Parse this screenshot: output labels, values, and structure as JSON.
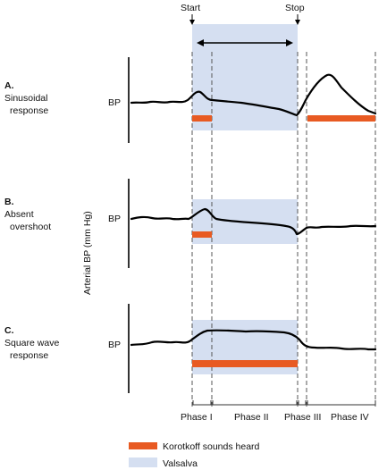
{
  "markers": {
    "start": "Start",
    "stop": "Stop"
  },
  "axis_label": "Arterial BP (mm Hg)",
  "panels": [
    {
      "letter": "A.",
      "title_lines": [
        "Sinusoidal",
        "response"
      ],
      "bp_label": "BP"
    },
    {
      "letter": "B.",
      "title_lines": [
        "Absent",
        "overshoot"
      ],
      "bp_label": "BP"
    },
    {
      "letter": "C.",
      "title_lines": [
        "Square wave",
        "response"
      ],
      "bp_label": "BP"
    }
  ],
  "phases": [
    "Phase I",
    "Phase II",
    "Phase III",
    "Phase IV"
  ],
  "legend": {
    "korotkoff": {
      "label": "Korotkoff sounds heard",
      "color": "#e85a22"
    },
    "valsalva": {
      "label": "Valsalva",
      "color": "#d5dff1"
    }
  },
  "colors": {
    "trace": "#000000",
    "dashes": "#555555"
  }
}
